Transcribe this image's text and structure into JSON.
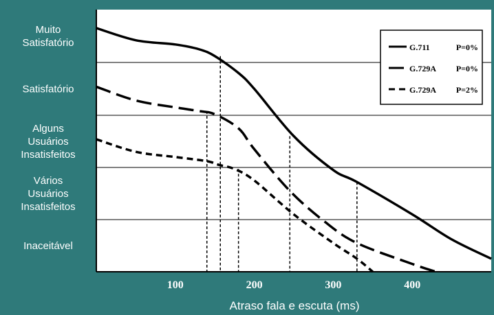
{
  "colors": {
    "panel_background": "#2f7a7a",
    "plot_background": "#ffffff",
    "series_color": "#000000",
    "label_text": "#ffffff"
  },
  "chart_data": {
    "type": "line",
    "title": "",
    "xlabel": "Atraso fala e escuta (ms)",
    "ylabel": "",
    "x_ticks": [
      100,
      200,
      300,
      400
    ],
    "xlim": [
      0,
      500
    ],
    "y_axis": "categorical bands",
    "y_bands": [
      "Muito Satisfatório",
      "Satisfatório",
      "Alguns Usuários Insatisfeitos",
      "Vários Usuários Insatisfeitos",
      "Inaceitável"
    ],
    "grid": "horizontal band separators",
    "legend_position": "top-right",
    "series": [
      {
        "name": "G.711 P=0%",
        "style": "solid",
        "points": [
          [
            0,
            4.65
          ],
          [
            50,
            4.42
          ],
          [
            100,
            4.34
          ],
          [
            130,
            4.25
          ],
          [
            150,
            4.12
          ],
          [
            180,
            3.8
          ],
          [
            200,
            3.5
          ],
          [
            250,
            2.6
          ],
          [
            300,
            1.95
          ],
          [
            330,
            1.72
          ],
          [
            400,
            1.1
          ],
          [
            450,
            0.62
          ],
          [
            500,
            0.25
          ]
        ]
      },
      {
        "name": "G.729A P=0%",
        "style": "long-dash",
        "points": [
          [
            0,
            3.54
          ],
          [
            50,
            3.28
          ],
          [
            100,
            3.15
          ],
          [
            130,
            3.08
          ],
          [
            150,
            3.02
          ],
          [
            180,
            2.75
          ],
          [
            200,
            2.35
          ],
          [
            245,
            1.55
          ],
          [
            290,
            0.95
          ],
          [
            330,
            0.55
          ],
          [
            400,
            0.15
          ],
          [
            430,
            0.0
          ]
        ]
      },
      {
        "name": "G.729A P=2%",
        "style": "short-dash",
        "points": [
          [
            0,
            2.54
          ],
          [
            50,
            2.3
          ],
          [
            100,
            2.2
          ],
          [
            140,
            2.12
          ],
          [
            155,
            2.05
          ],
          [
            175,
            1.97
          ],
          [
            200,
            1.75
          ],
          [
            250,
            1.1
          ],
          [
            300,
            0.55
          ],
          [
            330,
            0.25
          ],
          [
            350,
            0.0
          ]
        ]
      }
    ],
    "dropline_x": [
      140,
      157,
      180,
      245,
      330
    ]
  },
  "legend": [
    {
      "codec": "G.711",
      "loss": "P=0%"
    },
    {
      "codec": "G.729A",
      "loss": "P=0%"
    },
    {
      "codec": "G.729A",
      "loss": "P=2%"
    }
  ]
}
